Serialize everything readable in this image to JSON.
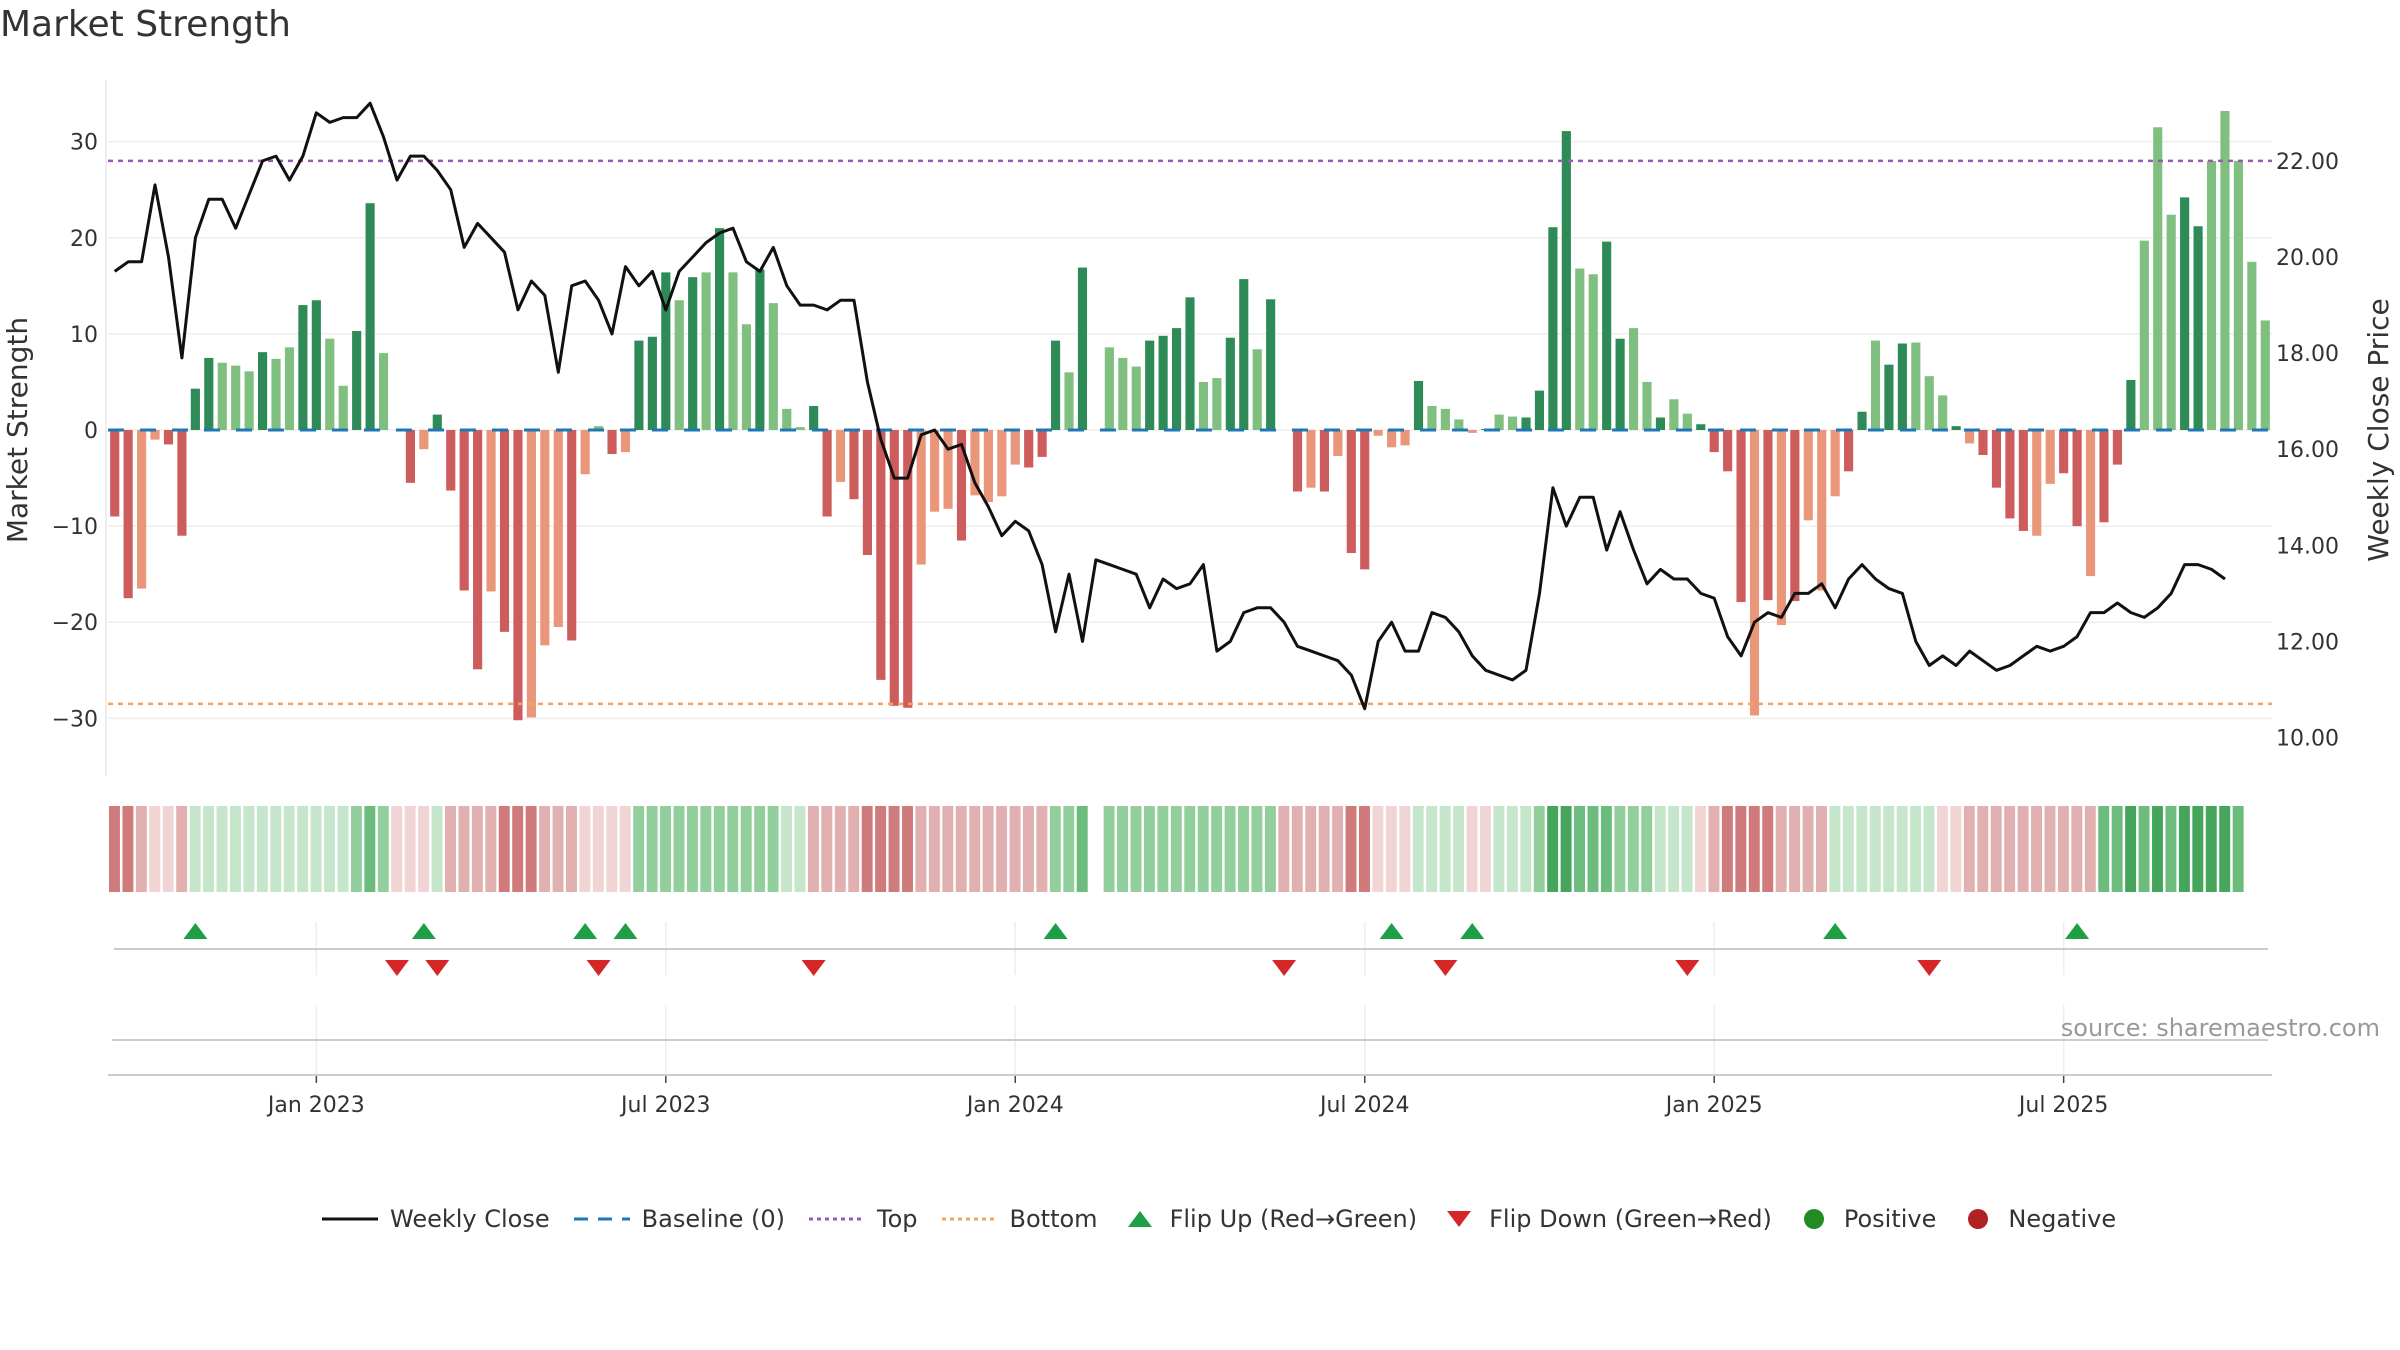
{
  "title": "Market Strength",
  "source": "source: sharemaestro.com",
  "legend": {
    "weekly_close": "Weekly Close",
    "baseline": "Baseline (0)",
    "top": "Top",
    "bottom": "Bottom",
    "flip_up": "Flip Up (Red→Green)",
    "flip_down": "Flip Down (Green→Red)",
    "positive": "Positive",
    "negative": "Negative"
  },
  "colors": {
    "pos_dark": "#2e8b57",
    "pos_light": "#7fbf7f",
    "neg_dark": "#cd5c5c",
    "neg_light": "#e9967a",
    "top": "#9b59b6",
    "bottom": "#f4a460",
    "baseline": "#1f77b4",
    "flip_up": "#1e9e45",
    "flip_down": "#d62728",
    "positive": "#228b22",
    "negative": "#b22222",
    "line": "#111111"
  },
  "chart_data": {
    "type": "bar+line",
    "title": "Market Strength",
    "ylabel": "Market Strength",
    "y2label": "Weekly Close Price",
    "ylim": [
      -36,
      36
    ],
    "y2lim": [
      9.2,
      23.6
    ],
    "yticks": [
      30,
      20,
      10,
      0,
      -10,
      -20,
      -30
    ],
    "ytick_labels": [
      "30",
      "20",
      "10",
      "0",
      "−10",
      "−20",
      "−30"
    ],
    "y2ticks": [
      22,
      20,
      18,
      16,
      14,
      12,
      10
    ],
    "y2tick_labels": [
      "22.00",
      "20.00",
      "18.00",
      "16.00",
      "14.00",
      "12.00",
      "10.00"
    ],
    "top_level": 28,
    "bottom_level": -28.5,
    "xticks": [
      {
        "week": 15,
        "label": "Jan 2023"
      },
      {
        "week": 41,
        "label": "Jul 2023"
      },
      {
        "week": 67,
        "label": "Jan 2024"
      },
      {
        "week": 93,
        "label": "Jul 2024"
      },
      {
        "week": 119,
        "label": "Jan 2025"
      },
      {
        "week": 145,
        "label": "Jul 2025"
      }
    ],
    "strength": [
      -9,
      -17.5,
      -16.5,
      -1,
      -1.5,
      -11,
      4.3,
      7.5,
      7,
      6.7,
      6.1,
      8.1,
      7.4,
      8.6,
      13,
      13.5,
      9.5,
      4.6,
      10.3,
      23.6,
      8,
      0,
      -5.5,
      -2,
      1.6,
      -6.3,
      -16.7,
      -24.9,
      -16.8,
      -21,
      -30.2,
      -29.9,
      -22.4,
      -20.5,
      -21.9,
      -4.6,
      0.4,
      -2.5,
      -2.3,
      9.3,
      9.7,
      16.4,
      13.5,
      15.9,
      16.4,
      21,
      16.4,
      11,
      16.7,
      13.2,
      2.2,
      0.3,
      2.5,
      -9,
      -5.4,
      -7.2,
      -13,
      -26,
      -28.7,
      -28.9,
      -14,
      -8.5,
      -8.2,
      -11.5,
      -6.8,
      -7.5,
      -6.9,
      -3.6,
      -3.9,
      -2.8,
      9.3,
      6,
      16.9,
      0,
      8.6,
      7.5,
      6.6,
      9.3,
      9.8,
      10.6,
      13.8,
      5,
      5.4,
      9.6,
      15.7,
      8.4,
      13.6,
      0,
      -6.4,
      -6,
      -6.4,
      -2.7,
      -12.8,
      -14.5,
      -0.6,
      -1.8,
      -1.6,
      5.1,
      2.5,
      2.2,
      1.1,
      -0.3,
      0.1,
      1.6,
      1.4,
      1.3,
      4.1,
      21.1,
      31.1,
      16.8,
      16.2,
      19.6,
      9.5,
      10.6,
      5,
      1.3,
      3.2,
      1.7,
      0.6,
      -2.3,
      -4.3,
      -17.9,
      -29.7,
      -17.7,
      -20.3,
      -17.8,
      -9.4,
      -16.7,
      -6.9,
      -4.3,
      1.9,
      9.3,
      6.8,
      9,
      9.1,
      5.6,
      3.6,
      0.4,
      -1.4,
      -2.6,
      -6,
      -9.2,
      -10.5,
      -11,
      -5.6,
      -4.5,
      -10,
      -15.2,
      -9.6,
      -3.6,
      5.2,
      19.7,
      31.5,
      22.4,
      24.2,
      21.2,
      28,
      33.2,
      28,
      17.5,
      11.4
    ],
    "strength_shade": [
      "d",
      "d",
      "l",
      "l",
      "d",
      "d",
      "d",
      "d",
      "l",
      "l",
      "l",
      "d",
      "l",
      "l",
      "d",
      "d",
      "l",
      "l",
      "d",
      "d",
      "l",
      "l",
      "d",
      "l",
      "d",
      "d",
      "d",
      "d",
      "l",
      "d",
      "d",
      "l",
      "l",
      "l",
      "d",
      "l",
      "l",
      "d",
      "l",
      "d",
      "d",
      "d",
      "l",
      "d",
      "l",
      "d",
      "l",
      "l",
      "d",
      "l",
      "l",
      "l",
      "d",
      "d",
      "l",
      "d",
      "d",
      "d",
      "d",
      "d",
      "l",
      "l",
      "l",
      "d",
      "l",
      "l",
      "l",
      "l",
      "d",
      "d",
      "d",
      "l",
      "d",
      "d",
      "l",
      "l",
      "l",
      "d",
      "d",
      "d",
      "d",
      "l",
      "l",
      "d",
      "d",
      "l",
      "d",
      "l",
      "d",
      "l",
      "d",
      "l",
      "d",
      "d",
      "l",
      "l",
      "l",
      "d",
      "l",
      "l",
      "l",
      "l",
      "d",
      "l",
      "l",
      "d",
      "d",
      "d",
      "d",
      "l",
      "l",
      "d",
      "d",
      "l",
      "l",
      "d",
      "l",
      "l",
      "d",
      "d",
      "d",
      "d",
      "l",
      "d",
      "l",
      "d",
      "l",
      "l",
      "l",
      "d",
      "d",
      "l",
      "d",
      "d",
      "l",
      "l",
      "l",
      "d",
      "l",
      "d",
      "d",
      "d",
      "d",
      "l",
      "l",
      "d",
      "d",
      "l",
      "d",
      "d",
      "d",
      "l",
      "l",
      "l",
      "d",
      "d",
      "l",
      "l",
      "l"
    ],
    "weekly_close": [
      19.7,
      19.9,
      19.9,
      21.5,
      20,
      17.9,
      20.4,
      21.2,
      21.2,
      20.6,
      21.3,
      22,
      22.1,
      21.6,
      22.1,
      23,
      22.8,
      22.9,
      22.9,
      23.2,
      22.5,
      21.6,
      22.1,
      22.1,
      21.8,
      21.4,
      20.2,
      20.7,
      20.4,
      20.1,
      18.9,
      19.5,
      19.2,
      17.6,
      19.4,
      19.5,
      19.1,
      18.4,
      19.8,
      19.4,
      19.7,
      18.9,
      19.7,
      20,
      20.3,
      20.5,
      20.6,
      19.9,
      19.7,
      20.2,
      19.4,
      19,
      19,
      18.9,
      19.1,
      19.1,
      17.4,
      16.2,
      15.4,
      15.4,
      16.3,
      16.4,
      16,
      16.1,
      15.3,
      14.8,
      14.2,
      14.5,
      14.3,
      13.6,
      12.2,
      13.4,
      12,
      13.7,
      13.6,
      13.5,
      13.4,
      12.7,
      13.3,
      13.1,
      13.2,
      13.6,
      11.8,
      12,
      12.6,
      12.7,
      12.7,
      12.4,
      11.9,
      11.8,
      11.7,
      11.6,
      11.3,
      10.6,
      12,
      12.4,
      11.8,
      11.8,
      12.6,
      12.5,
      12.2,
      11.7,
      11.4,
      11.3,
      11.2,
      11.4,
      13,
      15.2,
      14.4,
      15,
      15,
      13.9,
      14.7,
      13.9,
      13.2,
      13.5,
      13.3,
      13.3,
      13,
      12.9,
      12.1,
      11.7,
      12.4,
      12.6,
      12.5,
      13,
      13,
      13.2,
      12.7,
      13.3,
      13.6,
      13.3,
      13.1,
      13,
      12,
      11.5,
      11.7,
      11.5,
      11.8,
      11.6,
      11.4,
      11.5,
      11.7,
      11.9,
      11.8,
      11.9,
      12.1,
      12.6,
      12.6,
      12.8,
      12.6,
      12.5,
      12.7,
      13,
      13.6,
      13.6,
      13.5,
      13.3
    ],
    "flip_up_weeks": [
      6,
      23,
      35,
      38,
      70,
      95,
      101,
      128,
      146
    ],
    "flip_down_weeks": [
      21,
      24,
      36,
      52,
      87,
      99,
      117,
      135
    ],
    "heat_strip": [
      "n3",
      "n3",
      "n2",
      "n1",
      "n1",
      "n2",
      "p1",
      "p1",
      "p1",
      "p1",
      "p1",
      "p1",
      "p1",
      "p1",
      "p1",
      "p1",
      "p1",
      "p1",
      "p2",
      "p3",
      "p2",
      "n1",
      "n1",
      "n1",
      "p1",
      "n2",
      "n2",
      "n2",
      "n2",
      "n3",
      "n3",
      "n3",
      "n2",
      "n2",
      "n2",
      "n1",
      "n1",
      "n1",
      "n1",
      "p2",
      "p2",
      "p2",
      "p2",
      "p2",
      "p2",
      "p2",
      "p2",
      "p2",
      "p2",
      "p2",
      "p1",
      "p1",
      "n2",
      "n2",
      "n2",
      "n2",
      "n3",
      "n3",
      "n3",
      "n3",
      "n2",
      "n2",
      "n2",
      "n2",
      "n2",
      "n2",
      "n2",
      "n2",
      "n2",
      "n2",
      "p2",
      "p2",
      "p3",
      "e",
      "p2",
      "p2",
      "p2",
      "p2",
      "p2",
      "p2",
      "p2",
      "p2",
      "p2",
      "p2",
      "p2",
      "p2",
      "p2",
      "n2",
      "n2",
      "n2",
      "n2",
      "n2",
      "n3",
      "n3",
      "n1",
      "n1",
      "n1",
      "p1",
      "p1",
      "p1",
      "p1",
      "n1",
      "n1",
      "p1",
      "p1",
      "p1",
      "p2",
      "p4",
      "p4",
      "p3",
      "p3",
      "p3",
      "p2",
      "p2",
      "p2",
      "p1",
      "p1",
      "p1",
      "n1",
      "n2",
      "n3",
      "n3",
      "n3",
      "n3",
      "n2",
      "n2",
      "n2",
      "n2",
      "p1",
      "p1",
      "p1",
      "p1",
      "p1",
      "p1",
      "p1",
      "p1",
      "n1",
      "n1",
      "n2",
      "n2",
      "n2",
      "n2",
      "n2",
      "n2",
      "n2",
      "n2",
      "n2",
      "n2",
      "p3",
      "p3",
      "p4",
      "p3",
      "p4",
      "p3",
      "p4",
      "p4",
      "p4",
      "p4",
      "p3"
    ],
    "heat_colors": {
      "n1": "#f1d5d5",
      "n2": "#e2b0b0",
      "n3": "#cf7b7b",
      "p1": "#c6e6cc",
      "p2": "#93cf9d",
      "p3": "#6cbd7d",
      "p4": "#45a55b",
      "e": "#ffffff"
    }
  }
}
